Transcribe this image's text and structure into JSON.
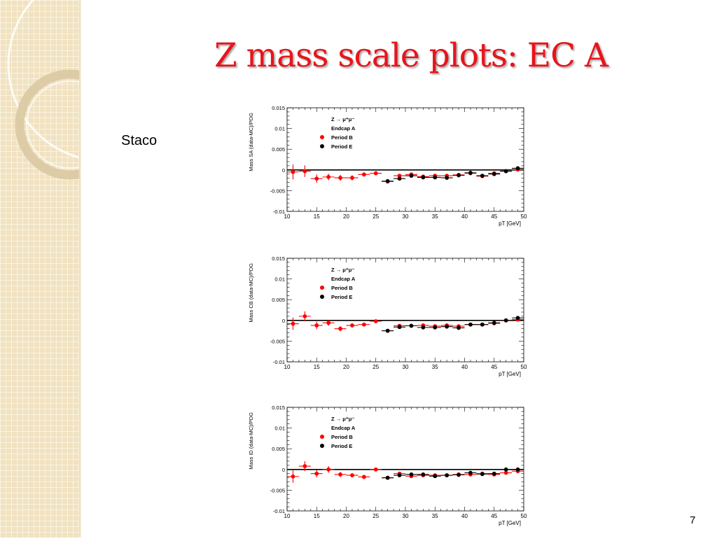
{
  "slide": {
    "title": "Z mass scale plots: EC A",
    "side_label": "Staco",
    "page_number": "7"
  },
  "colors": {
    "title": "#e8141b",
    "period_b": "#ff0000",
    "period_e": "#000000",
    "sidebar": "#f1e2c0"
  },
  "chart_data": [
    {
      "type": "scatter",
      "xlabel": "pT [GeV]",
      "ylabel": "Mass SA (data-MC)/PDG",
      "xlim": [
        10,
        50
      ],
      "ylim": [
        -0.01,
        0.015
      ],
      "xticks": [
        "10",
        "15",
        "20",
        "25",
        "30",
        "35",
        "40",
        "45",
        "50"
      ],
      "yticks": [
        "-0.01",
        "-0.005",
        "0",
        "0.005",
        "0.01",
        "0.015"
      ],
      "legend": {
        "title": "Z → μ⁺μ⁻",
        "subtitle": "Endcap A",
        "position": "top-left"
      },
      "series": [
        {
          "name": "Period B",
          "color": "#ff0000",
          "x": [
            11,
            13,
            15,
            17,
            19,
            21,
            23,
            25,
            27,
            29,
            31,
            33,
            35,
            37,
            39,
            41,
            43,
            45,
            47,
            49
          ],
          "y": [
            -0.0005,
            -0.0003,
            -0.0021,
            -0.0017,
            -0.0019,
            -0.0019,
            -0.0011,
            -0.0008,
            -0.0028,
            -0.0014,
            -0.0011,
            -0.0016,
            -0.0014,
            -0.0014,
            -0.0012,
            -0.0008,
            -0.0015,
            -0.0008,
            -0.0003,
            0.0001
          ],
          "yerr": [
            0.0018,
            0.0014,
            0.001,
            0.0008,
            0.0007,
            0.0006,
            0.0005,
            0.0004,
            0.0004,
            0.0003,
            0.0003,
            0.0003,
            0.0003,
            0.0003,
            0.0003,
            0.0003,
            0.0003,
            0.0003,
            0.0003,
            0.0004
          ]
        },
        {
          "name": "Period E",
          "color": "#000000",
          "x": [
            27,
            29,
            31,
            33,
            35,
            37,
            39,
            41,
            43,
            45,
            47,
            49
          ],
          "y": [
            -0.0027,
            -0.0021,
            -0.0014,
            -0.0018,
            -0.0018,
            -0.0019,
            -0.0013,
            -0.0007,
            -0.0014,
            -0.001,
            -0.0003,
            0.0004
          ],
          "yerr": [
            0.0003,
            0.0003,
            0.0003,
            0.0003,
            0.0003,
            0.0003,
            0.0003,
            0.0003,
            0.0003,
            0.0003,
            0.0003,
            0.0003
          ]
        }
      ]
    },
    {
      "type": "scatter",
      "xlabel": "pT [GeV]",
      "ylabel": "Mass CB (data-MC)/PDG",
      "xlim": [
        10,
        50
      ],
      "ylim": [
        -0.01,
        0.015
      ],
      "xticks": [
        "10",
        "15",
        "20",
        "25",
        "30",
        "35",
        "40",
        "45",
        "50"
      ],
      "yticks": [
        "-0.01",
        "-0.005",
        "0",
        "0.005",
        "0.01",
        "0.015"
      ],
      "legend": {
        "title": "Z → μ⁺μ⁻",
        "subtitle": "Endcap A",
        "position": "top-left"
      },
      "series": [
        {
          "name": "Period B",
          "color": "#ff0000",
          "x": [
            11,
            13,
            15,
            17,
            19,
            21,
            23,
            25,
            27,
            29,
            31,
            33,
            35,
            37,
            39,
            41,
            43,
            45,
            47,
            49
          ],
          "y": [
            -0.0008,
            0.001,
            -0.0012,
            -0.0006,
            -0.002,
            -0.0012,
            -0.001,
            -0.0002,
            -0.0025,
            -0.0013,
            -0.0013,
            -0.0012,
            -0.0014,
            -0.0012,
            -0.0014,
            -0.001,
            -0.001,
            -0.0007,
            0.0,
            0.0002
          ],
          "yerr": [
            0.0015,
            0.0012,
            0.0009,
            0.0007,
            0.0006,
            0.0005,
            0.0004,
            0.0003,
            0.0003,
            0.0003,
            0.0003,
            0.0003,
            0.0003,
            0.0003,
            0.0003,
            0.0003,
            0.0003,
            0.0003,
            0.0003,
            0.0004
          ]
        },
        {
          "name": "Period E",
          "color": "#000000",
          "x": [
            27,
            29,
            31,
            33,
            35,
            37,
            39,
            41,
            43,
            45,
            47,
            49
          ],
          "y": [
            -0.0025,
            -0.0016,
            -0.0013,
            -0.0017,
            -0.0017,
            -0.0015,
            -0.0018,
            -0.001,
            -0.001,
            -0.0006,
            0.0,
            0.0006
          ],
          "yerr": [
            0.0003,
            0.0003,
            0.0003,
            0.0003,
            0.0003,
            0.0003,
            0.0003,
            0.0003,
            0.0003,
            0.0003,
            0.0003,
            0.0003
          ]
        }
      ]
    },
    {
      "type": "scatter",
      "xlabel": "pT [GeV]",
      "ylabel": "Mass ID (data-MC)/PDG",
      "xlim": [
        10,
        50
      ],
      "ylim": [
        -0.01,
        0.015
      ],
      "xticks": [
        "10",
        "15",
        "20",
        "25",
        "30",
        "35",
        "40",
        "45",
        "50"
      ],
      "yticks": [
        "-0.01",
        "-0.005",
        "0",
        "0.005",
        "0.01",
        "0.015"
      ],
      "legend": {
        "title": "Z → μ⁺μ⁻",
        "subtitle": "Endcap A",
        "position": "top-left"
      },
      "series": [
        {
          "name": "Period B",
          "color": "#ff0000",
          "x": [
            11,
            13,
            15,
            17,
            19,
            21,
            23,
            25,
            27,
            29,
            31,
            33,
            35,
            37,
            39,
            41,
            43,
            45,
            47,
            49
          ],
          "y": [
            -0.0017,
            0.0008,
            -0.001,
            0.0,
            -0.0012,
            -0.0014,
            -0.0018,
            0.0,
            -0.002,
            -0.001,
            -0.0016,
            -0.0014,
            -0.0014,
            -0.0014,
            -0.0012,
            -0.0012,
            -0.001,
            -0.0012,
            -0.0008,
            -0.0004
          ],
          "yerr": [
            0.0015,
            0.0012,
            0.0009,
            0.0008,
            0.0006,
            0.0005,
            0.0005,
            0.0003,
            0.0004,
            0.0003,
            0.0003,
            0.0003,
            0.0003,
            0.0003,
            0.0003,
            0.0003,
            0.0003,
            0.0003,
            0.0003,
            0.0004
          ]
        },
        {
          "name": "Period E",
          "color": "#000000",
          "x": [
            27,
            29,
            31,
            33,
            35,
            37,
            39,
            41,
            43,
            45,
            47,
            49
          ],
          "y": [
            -0.002,
            -0.0014,
            -0.0012,
            -0.0012,
            -0.0016,
            -0.0014,
            -0.0013,
            -0.0008,
            -0.0011,
            -0.001,
            0.0,
            0.0
          ],
          "yerr": [
            0.0003,
            0.0003,
            0.0003,
            0.0003,
            0.0003,
            0.0003,
            0.0003,
            0.0003,
            0.0003,
            0.0003,
            0.0003,
            0.0003
          ]
        }
      ]
    }
  ]
}
